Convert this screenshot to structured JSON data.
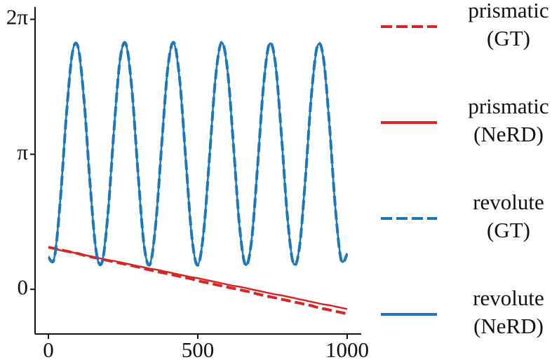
{
  "chart_data": {
    "type": "line",
    "x": [
      0,
      20,
      40,
      60,
      80,
      100,
      120,
      140,
      160,
      180,
      200,
      220,
      240,
      260,
      280,
      300,
      320,
      340,
      360,
      380,
      400,
      420,
      440,
      460,
      480,
      500,
      520,
      540,
      560,
      580,
      600,
      620,
      640,
      660,
      680,
      700,
      720,
      740,
      760,
      780,
      800,
      820,
      840,
      860,
      880,
      900,
      920,
      940,
      960,
      980,
      1000
    ],
    "series": [
      {
        "name": "prismatic (GT)",
        "color": "#d62728",
        "linestyle": "dashed",
        "values": [
          0.98,
          0.95,
          0.92,
          0.89,
          0.86,
          0.83,
          0.79,
          0.76,
          0.73,
          0.7,
          0.67,
          0.64,
          0.61,
          0.58,
          0.55,
          0.52,
          0.48,
          0.45,
          0.42,
          0.39,
          0.36,
          0.33,
          0.3,
          0.27,
          0.24,
          0.2,
          0.17,
          0.14,
          0.11,
          0.08,
          0.05,
          0.02,
          -0.01,
          -0.04,
          -0.07,
          -0.11,
          -0.14,
          -0.17,
          -0.2,
          -0.23,
          -0.26,
          -0.29,
          -0.32,
          -0.35,
          -0.38,
          -0.42,
          -0.45,
          -0.48,
          -0.51,
          -0.54,
          -0.57
        ]
      },
      {
        "name": "prismatic (NeRD)",
        "color": "#d62728",
        "linestyle": "solid",
        "values": [
          0.97,
          0.94,
          0.91,
          0.88,
          0.86,
          0.83,
          0.8,
          0.77,
          0.74,
          0.71,
          0.68,
          0.66,
          0.63,
          0.6,
          0.57,
          0.54,
          0.51,
          0.48,
          0.46,
          0.43,
          0.4,
          0.37,
          0.34,
          0.31,
          0.28,
          0.26,
          0.23,
          0.2,
          0.17,
          0.14,
          0.11,
          0.08,
          0.06,
          0.03,
          0.0,
          -0.03,
          -0.06,
          -0.09,
          -0.12,
          -0.14,
          -0.17,
          -0.2,
          -0.23,
          -0.26,
          -0.29,
          -0.32,
          -0.35,
          -0.37,
          -0.4,
          -0.43,
          -0.46
        ]
      },
      {
        "name": "revolute (GT)",
        "color": "#1f77b4",
        "linestyle": "dashed",
        "values": [
          0.75,
          0.73,
          2.08,
          4.03,
          5.49,
          5.62,
          4.35,
          2.41,
          0.88,
          0.64,
          1.82,
          3.75,
          5.35,
          5.7,
          4.61,
          2.71,
          1.04,
          0.58,
          1.57,
          3.44,
          5.17,
          5.74,
          4.84,
          3.01,
          1.23,
          0.56,
          1.36,
          3.15,
          4.96,
          5.75,
          5.07,
          3.3,
          1.45,
          0.56,
          1.13,
          2.85,
          4.74,
          5.72,
          5.25,
          3.59,
          1.69,
          0.6,
          0.96,
          2.56,
          4.49,
          5.66,
          5.41,
          3.89,
          1.94,
          0.68,
          0.82
        ]
      },
      {
        "name": "revolute (NeRD)",
        "color": "#1f77b4",
        "linestyle": "solid",
        "values": [
          0.76,
          0.74,
          2.1,
          4.05,
          5.5,
          5.61,
          4.33,
          2.4,
          0.87,
          0.65,
          1.84,
          3.77,
          5.36,
          5.69,
          4.6,
          2.69,
          1.03,
          0.59,
          1.59,
          3.46,
          5.18,
          5.73,
          4.82,
          2.99,
          1.22,
          0.57,
          1.38,
          3.17,
          4.97,
          5.74,
          5.05,
          3.28,
          1.44,
          0.57,
          1.15,
          2.87,
          4.75,
          5.71,
          5.23,
          3.57,
          1.68,
          0.61,
          0.98,
          2.58,
          4.5,
          5.65,
          5.39,
          3.87,
          1.93,
          0.69,
          0.84
        ]
      }
    ],
    "xlim": [
      -44.6,
      1047
    ],
    "xticks": [
      0,
      500,
      1000
    ],
    "ylim": [
      -1.04,
      6.57
    ],
    "yticks": [
      0,
      {
        "value": 3.14159,
        "label": "π"
      },
      {
        "value": 6.28318,
        "label": "2π"
      }
    ],
    "legend": "right"
  }
}
